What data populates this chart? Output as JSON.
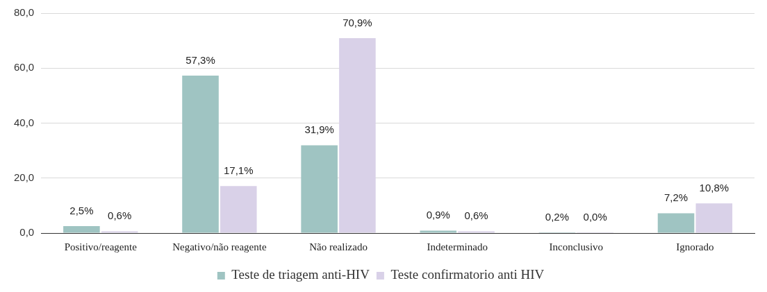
{
  "chart_data": {
    "type": "bar",
    "categories": [
      "Positivo/reagente",
      "Negativo/não reagente",
      "Não realizado",
      "Indeterminado",
      "Inconclusivo",
      "Ignorado"
    ],
    "series": [
      {
        "name": "Teste de triagem anti-HIV",
        "color": "#9fc4c2",
        "values": [
          2.5,
          57.3,
          31.9,
          0.9,
          0.2,
          7.2
        ],
        "value_labels": [
          "2,5%",
          "57,3%",
          "31,9%",
          "0,9%",
          "0,2%",
          "7,2%"
        ]
      },
      {
        "name": "Teste confirmatorio anti HIV",
        "color": "#d9d1e8",
        "values": [
          0.6,
          17.1,
          70.9,
          0.6,
          0.0,
          10.8
        ],
        "value_labels": [
          "0,6%",
          "17,1%",
          "70,9%",
          "0,6%",
          "0,0%",
          "10,8%"
        ]
      }
    ],
    "ylim": [
      0,
      80
    ],
    "yticks": [
      {
        "value": 0,
        "label": "0,0"
      },
      {
        "value": 20,
        "label": "20,0"
      },
      {
        "value": 40,
        "label": "40,0"
      },
      {
        "value": 60,
        "label": "60,0"
      },
      {
        "value": 80,
        "label": "80,0"
      }
    ],
    "grid": "y",
    "legend": "bottom"
  }
}
